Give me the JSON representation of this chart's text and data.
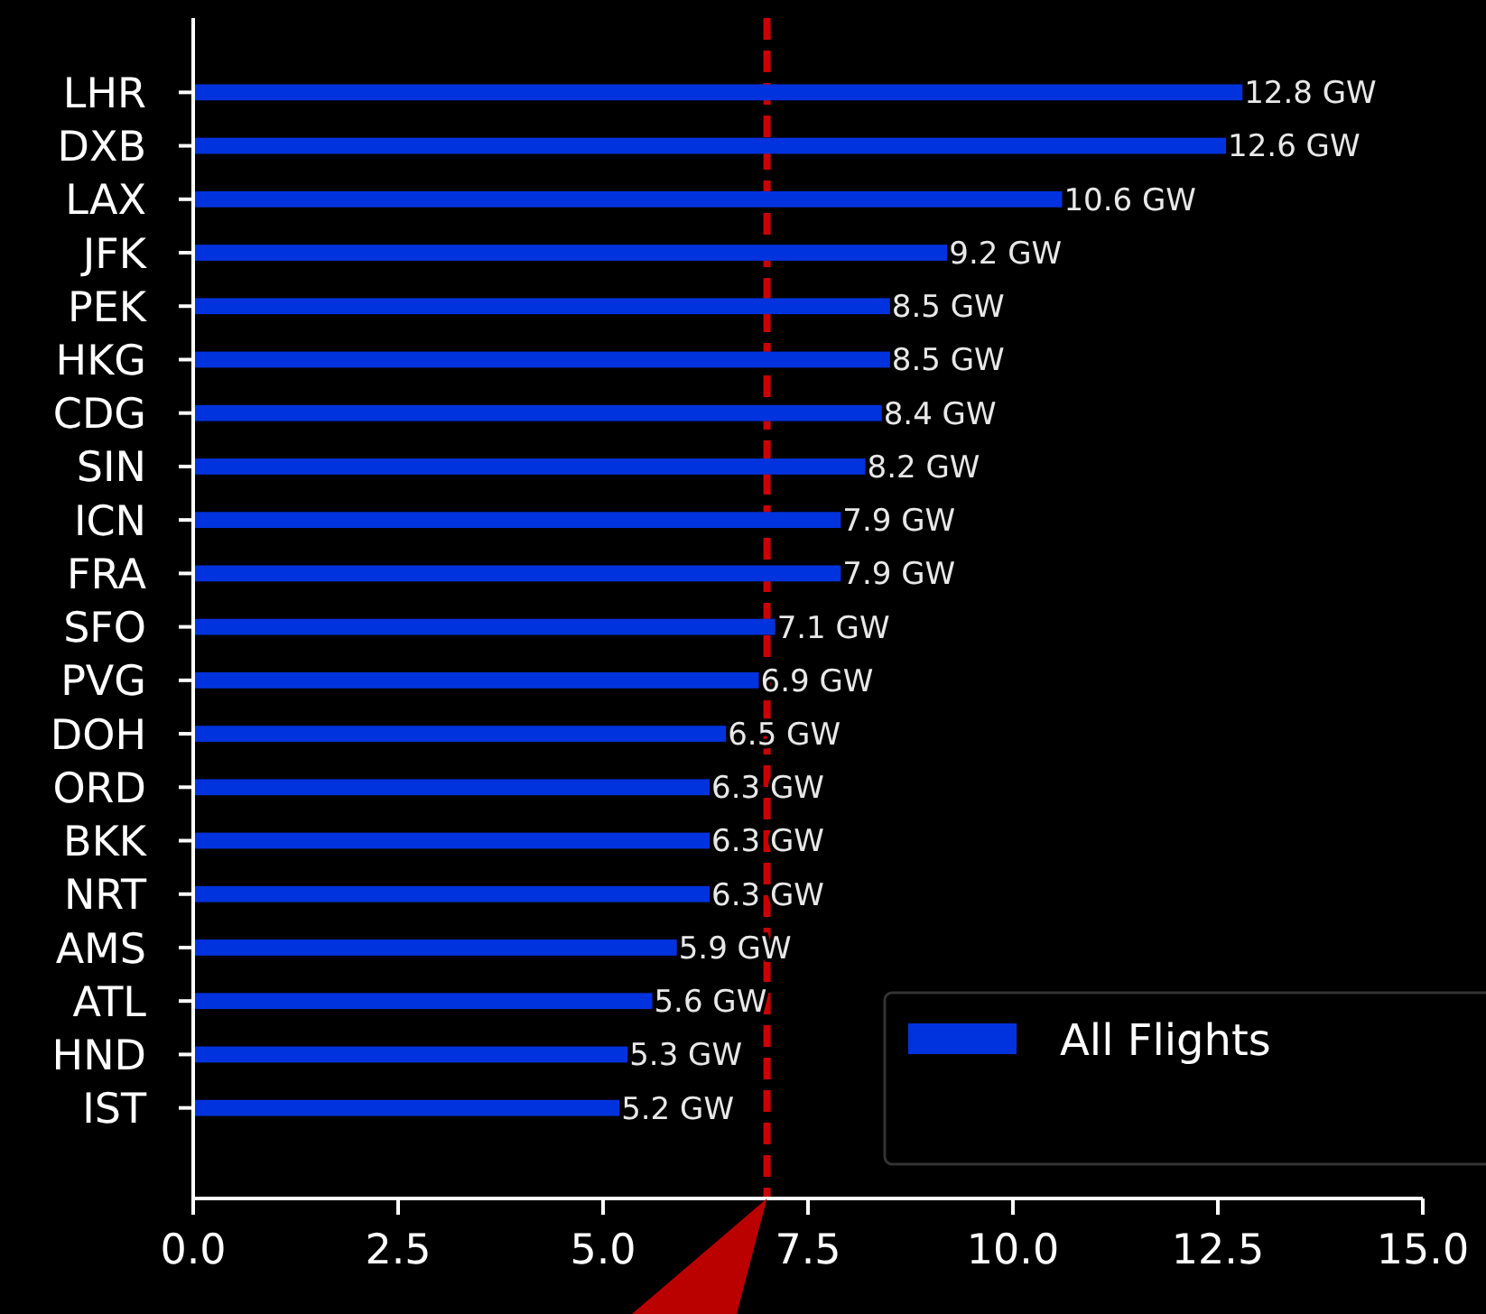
{
  "chart_data": {
    "type": "bar",
    "orientation": "horizontal",
    "categories": [
      "LHR",
      "DXB",
      "LAX",
      "JFK",
      "PEK",
      "HKG",
      "CDG",
      "SIN",
      "ICN",
      "FRA",
      "SFO",
      "PVG",
      "DOH",
      "ORD",
      "BKK",
      "NRT",
      "AMS",
      "ATL",
      "HND",
      "IST"
    ],
    "series": [
      {
        "name": "All Flights",
        "color": "#0033dd",
        "values": [
          12.8,
          12.6,
          10.6,
          9.2,
          8.5,
          8.5,
          8.4,
          8.2,
          7.9,
          7.9,
          7.1,
          6.9,
          6.5,
          6.3,
          6.3,
          6.3,
          5.9,
          5.6,
          5.3,
          5.2
        ],
        "value_labels": [
          "12.8 GW",
          "12.6 GW",
          "10.6 GW",
          "9.2 GW",
          "8.5 GW",
          "8.5 GW",
          "8.4 GW",
          "8.2 GW",
          "7.9 GW",
          "7.9 GW",
          "7.1 GW",
          "6.9 GW",
          "6.5 GW",
          "6.3 GW",
          "6.3 GW",
          "6.3 GW",
          "5.9 GW",
          "5.6 GW",
          "5.3 GW",
          "5.2 GW"
        ]
      }
    ],
    "xlim": [
      0,
      15
    ],
    "xticks": [
      {
        "value": 0,
        "label": "0.0"
      },
      {
        "value": 2.5,
        "label": "2.5"
      },
      {
        "value": 5,
        "label": "5.0"
      },
      {
        "value": 7.5,
        "label": "7.5"
      },
      {
        "value": 10,
        "label": "10.0"
      },
      {
        "value": 12.5,
        "label": "12.5"
      },
      {
        "value": 15,
        "label": "15.0"
      }
    ],
    "ref_lines": [
      {
        "axis": "x",
        "value": 7,
        "color": "#cc0000",
        "line_style": "dashed"
      }
    ],
    "legend": "bottom right",
    "grid": false
  }
}
